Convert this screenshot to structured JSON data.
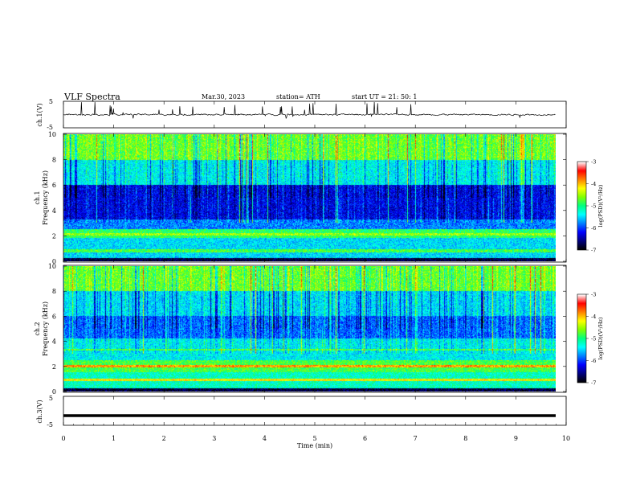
{
  "header": {
    "title": "VLF Spectra",
    "date": "Mar.30, 2023",
    "station": "station= ATH",
    "start": "start UT =   21: 50: 1"
  },
  "colors": {
    "colormap": [
      "#000000",
      "#00007f",
      "#0000ff",
      "#0080ff",
      "#00ffff",
      "#00ff80",
      "#80ff00",
      "#ffff00",
      "#ff8000",
      "#ff0000",
      "#ffffff"
    ]
  },
  "chart_data": [
    {
      "type": "line",
      "id": "ch1-waveform",
      "ylabel": "ch.1(V)",
      "ylim": [
        -5,
        5
      ],
      "yticks": [
        "5",
        "-5"
      ],
      "xlim": [
        0,
        10
      ],
      "series": [
        {
          "values_note": "",
          "x": [
            0,
            9.8
          ],
          "y_baseline": 0.0,
          "y_spike_max": 3.5
        }
      ]
    },
    {
      "type": "heatmap",
      "id": "ch1-spectrogram",
      "ylabel": "ch.1\nFrequency (kHz)",
      "ylabel_parts": [
        "ch.1",
        "Frequency (kHz)"
      ],
      "ylim": [
        0,
        10
      ],
      "yticks": [
        "0",
        "2",
        "4",
        "6",
        "8",
        "10"
      ],
      "xlim": [
        0,
        9.8
      ],
      "colorbar": {
        "label": "log(PSD)(V²/Hz)",
        "ticks": [
          "-3",
          "-4",
          "-5",
          "-6",
          "-7"
        ],
        "range": [
          -7,
          -3
        ]
      }
    },
    {
      "type": "heatmap",
      "id": "ch2-spectrogram",
      "ylabel_parts": [
        "ch.2",
        "Frequency (kHz)"
      ],
      "ylim": [
        0,
        10
      ],
      "yticks": [
        "0",
        "2",
        "4",
        "6",
        "8",
        "10"
      ],
      "xlim": [
        0,
        9.8
      ],
      "colorbar": {
        "label": "log(PSD)(V²/Hz)",
        "ticks": [
          "-3",
          "-4",
          "-5",
          "-6",
          "-7"
        ],
        "range": [
          -7,
          -3
        ]
      }
    },
    {
      "type": "line",
      "id": "ch3-waveform",
      "ylabel": "ch.3(V)",
      "ylim": [
        -5,
        5
      ],
      "yticks": [
        "5",
        "-5"
      ],
      "xlim": [
        0,
        10
      ],
      "series": [
        {
          "x": [
            0,
            9.8
          ],
          "y": [
            -2,
            -2
          ]
        }
      ]
    }
  ],
  "xaxis": {
    "label": "Time (min)",
    "ticks": [
      "0",
      "1",
      "2",
      "3",
      "4",
      "5",
      "6",
      "7",
      "8",
      "9",
      "10"
    ]
  }
}
